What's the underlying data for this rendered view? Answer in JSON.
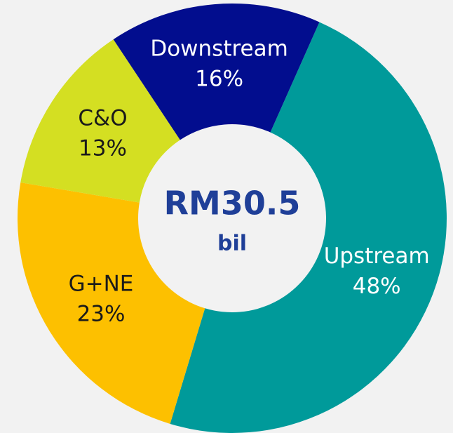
{
  "chart_data": {
    "type": "donut",
    "categories": [
      "Upstream",
      "G+NE",
      "C&O",
      "Downstream"
    ],
    "values": [
      48,
      23,
      13,
      16
    ],
    "value_labels": [
      "48%",
      "23%",
      "13%",
      "16%"
    ],
    "colors": [
      "#009a9a",
      "#fdc000",
      "#d4df22",
      "#020d8e"
    ],
    "label_colors": [
      "#ffffff",
      "#1a1a1a",
      "#1a1a1a",
      "#ffffff"
    ],
    "center_text": "RM30.5",
    "center_subtext": "bil"
  }
}
